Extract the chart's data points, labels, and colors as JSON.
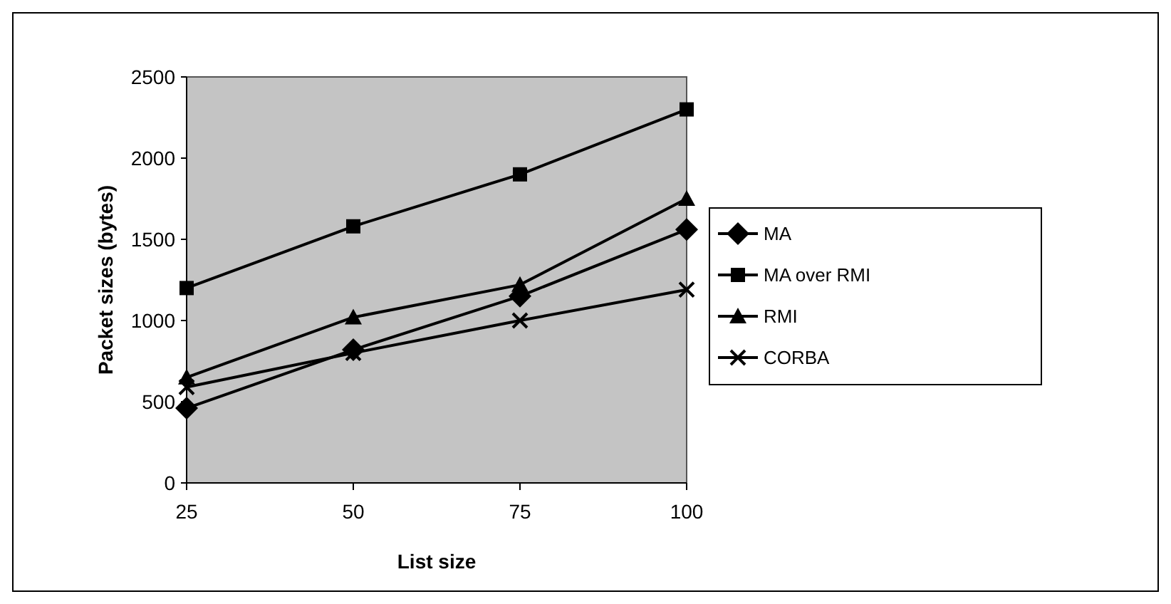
{
  "chart_data": {
    "type": "line",
    "xlabel": "List size",
    "ylabel": "Packet sizes (bytes)",
    "x": [
      25,
      50,
      75,
      100
    ],
    "xlim": [
      25,
      100
    ],
    "xticks": [
      25,
      50,
      75,
      100
    ],
    "ylim": [
      0,
      2500
    ],
    "yticks": [
      0,
      500,
      1000,
      1500,
      2000,
      2500
    ],
    "grid": false,
    "legend": "right",
    "line_style": "solid",
    "series": [
      {
        "name": "MA",
        "color": "#000000",
        "marker": "diamond",
        "values": [
          460,
          820,
          1150,
          1560
        ]
      },
      {
        "name": "MA over RMI",
        "color": "#000000",
        "marker": "square",
        "values": [
          1200,
          1580,
          1900,
          2300
        ]
      },
      {
        "name": "RMI",
        "color": "#000000",
        "marker": "triangle",
        "values": [
          650,
          1020,
          1220,
          1750
        ]
      },
      {
        "name": "CORBA",
        "color": "#000000",
        "marker": "cross",
        "values": [
          590,
          800,
          1000,
          1190
        ]
      }
    ]
  }
}
